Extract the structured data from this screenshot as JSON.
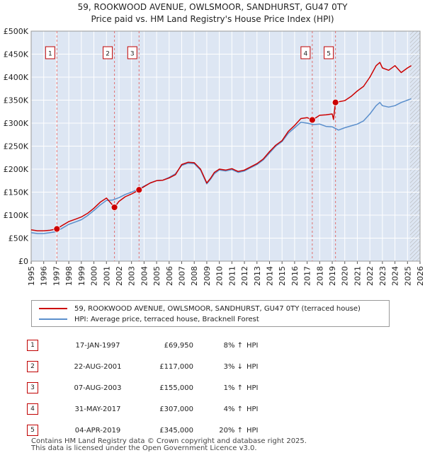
{
  "header": {
    "title": "59, ROOKWOOD AVENUE, OWLSMOOR, SANDHURST, GU47 0TY",
    "subtitle": "Price paid vs. HM Land Registry's House Price Index (HPI)"
  },
  "chart_data": {
    "type": "line",
    "title": "59, ROOKWOOD AVENUE, OWLSMOOR, SANDHURST, GU47 0TY",
    "subtitle": "Price paid vs. HM Land Registry's House Price Index (HPI)",
    "xlim": [
      1995,
      2026
    ],
    "ylim": [
      0,
      500000
    ],
    "y_ticks": [
      0,
      50000,
      100000,
      150000,
      200000,
      250000,
      300000,
      350000,
      400000,
      450000,
      500000
    ],
    "y_tick_labels": [
      "£0",
      "£50K",
      "£100K",
      "£150K",
      "£200K",
      "£250K",
      "£300K",
      "£350K",
      "£400K",
      "£450K",
      "£500K"
    ],
    "x_ticks": [
      1995,
      1996,
      1997,
      1998,
      1999,
      2000,
      2001,
      2002,
      2003,
      2004,
      2005,
      2006,
      2007,
      2008,
      2009,
      2010,
      2011,
      2012,
      2013,
      2014,
      2015,
      2016,
      2017,
      2018,
      2019,
      2020,
      2021,
      2022,
      2023,
      2024,
      2025,
      2026
    ],
    "x_tick_labels": [
      "1995",
      "1996",
      "1997",
      "1998",
      "1999",
      "2000",
      "2001",
      "2002",
      "2003",
      "2004",
      "2005",
      "2006",
      "2007",
      "2008",
      "2009",
      "2010",
      "2011",
      "2012",
      "2013",
      "2014",
      "2015",
      "2016",
      "2017",
      "2018",
      "2019",
      "2020",
      "2021",
      "2022",
      "2023",
      "2024",
      "2025",
      "2026"
    ],
    "grid": true,
    "hatched_future_from": 2025.2,
    "series": [
      {
        "name": "59, ROOKWOOD AVENUE, OWLSMOOR, SANDHURST, GU47 0TY (terraced house)",
        "color": "#cc0000",
        "x": [
          1995.0,
          1995.5,
          1996.0,
          1996.5,
          1997.05,
          1997.5,
          1998.0,
          1998.5,
          1999.0,
          1999.5,
          2000.0,
          2000.5,
          2001.0,
          2001.64,
          2002.0,
          2002.5,
          2003.0,
          2003.6,
          2004.0,
          2004.5,
          2005.0,
          2005.5,
          2006.0,
          2006.5,
          2007.0,
          2007.5,
          2008.0,
          2008.5,
          2009.0,
          2009.3,
          2009.6,
          2010.0,
          2010.5,
          2011.0,
          2011.5,
          2012.0,
          2012.5,
          2013.0,
          2013.5,
          2014.0,
          2014.5,
          2015.0,
          2015.5,
          2016.0,
          2016.5,
          2017.0,
          2017.41,
          2017.6,
          2018.0,
          2018.5,
          2019.0,
          2019.1,
          2019.26,
          2019.6,
          2020.0,
          2020.5,
          2021.0,
          2021.5,
          2022.0,
          2022.5,
          2022.8,
          2023.0,
          2023.5,
          2024.0,
          2024.5,
          2025.0,
          2025.3
        ],
        "values": [
          68000,
          66000,
          66000,
          67000,
          69950,
          78000,
          86000,
          91000,
          96000,
          104000,
          115000,
          128000,
          137000,
          117000,
          130000,
          140000,
          146000,
          155000,
          162000,
          170000,
          175000,
          176000,
          181000,
          188000,
          210000,
          215000,
          214000,
          200000,
          170000,
          180000,
          193000,
          200000,
          198000,
          201000,
          195000,
          198000,
          205000,
          212000,
          222000,
          238000,
          252000,
          262000,
          282000,
          295000,
          310000,
          312000,
          307000,
          310000,
          317000,
          318000,
          320000,
          308000,
          345000,
          347000,
          349000,
          358000,
          370000,
          380000,
          400000,
          425000,
          432000,
          420000,
          415000,
          425000,
          410000,
          420000,
          425000
        ]
      },
      {
        "name": "HPI: Average price, terraced house, Bracknell Forest",
        "color": "#5b8fcc",
        "x": [
          1995.0,
          1995.5,
          1996.0,
          1996.5,
          1997.0,
          1997.5,
          1998.0,
          1998.5,
          1999.0,
          1999.5,
          2000.0,
          2000.5,
          2001.0,
          2001.5,
          2002.0,
          2002.5,
          2003.0,
          2003.5,
          2004.0,
          2004.5,
          2005.0,
          2005.5,
          2006.0,
          2006.5,
          2007.0,
          2007.5,
          2008.0,
          2008.5,
          2009.0,
          2009.3,
          2009.6,
          2010.0,
          2010.5,
          2011.0,
          2011.5,
          2012.0,
          2012.5,
          2013.0,
          2013.5,
          2014.0,
          2014.5,
          2015.0,
          2015.5,
          2016.0,
          2016.5,
          2017.0,
          2017.5,
          2018.0,
          2018.5,
          2019.0,
          2019.5,
          2020.0,
          2020.5,
          2021.0,
          2021.5,
          2022.0,
          2022.5,
          2022.8,
          2023.0,
          2023.5,
          2024.0,
          2024.5,
          2025.0,
          2025.3
        ],
        "values": [
          62000,
          60000,
          60000,
          62000,
          64000,
          72000,
          80000,
          85000,
          90000,
          99000,
          110000,
          122000,
          132000,
          133000,
          138000,
          145000,
          150000,
          156000,
          163000,
          170000,
          175000,
          176000,
          182000,
          190000,
          208000,
          213000,
          212000,
          198000,
          168000,
          178000,
          190000,
          198000,
          196000,
          199000,
          193000,
          196000,
          203000,
          210000,
          220000,
          235000,
          250000,
          260000,
          278000,
          290000,
          302000,
          300000,
          297000,
          298000,
          293000,
          292000,
          285000,
          290000,
          294000,
          298000,
          305000,
          320000,
          338000,
          345000,
          338000,
          335000,
          338000,
          345000,
          350000,
          353000
        ]
      }
    ],
    "sales": [
      {
        "label": "1",
        "x": 1997.05,
        "value": 69950
      },
      {
        "label": "2",
        "x": 2001.64,
        "value": 117000
      },
      {
        "label": "3",
        "x": 2003.6,
        "value": 155000
      },
      {
        "label": "4",
        "x": 2017.41,
        "value": 307000
      },
      {
        "label": "5",
        "x": 2019.26,
        "value": 345000
      }
    ]
  },
  "legend": {
    "property": "59, ROOKWOOD AVENUE, OWLSMOOR, SANDHURST, GU47 0TY (terraced house)",
    "hpi": "HPI: Average price, terraced house, Bracknell Forest"
  },
  "transactions": [
    {
      "num": "1",
      "date": "17-JAN-1997",
      "price": "£69,950",
      "pct": "8% ↑",
      "hpi": "HPI"
    },
    {
      "num": "2",
      "date": "22-AUG-2001",
      "price": "£117,000",
      "pct": "3% ↓",
      "hpi": "HPI"
    },
    {
      "num": "3",
      "date": "07-AUG-2003",
      "price": "£155,000",
      "pct": "1% ↑",
      "hpi": "HPI"
    },
    {
      "num": "4",
      "date": "31-MAY-2017",
      "price": "£307,000",
      "pct": "4% ↑",
      "hpi": "HPI"
    },
    {
      "num": "5",
      "date": "04-APR-2019",
      "price": "£345,000",
      "pct": "20% ↑",
      "hpi": "HPI"
    }
  ],
  "footer": {
    "line1": "Contains HM Land Registry data © Crown copyright and database right 2025.",
    "line2": "This data is licensed under the Open Government Licence v3.0."
  },
  "colors": {
    "property_line": "#cc0000",
    "hpi_line": "#5b8fcc",
    "marker_border": "#c00000",
    "plot_bg": "#dde6f3"
  }
}
